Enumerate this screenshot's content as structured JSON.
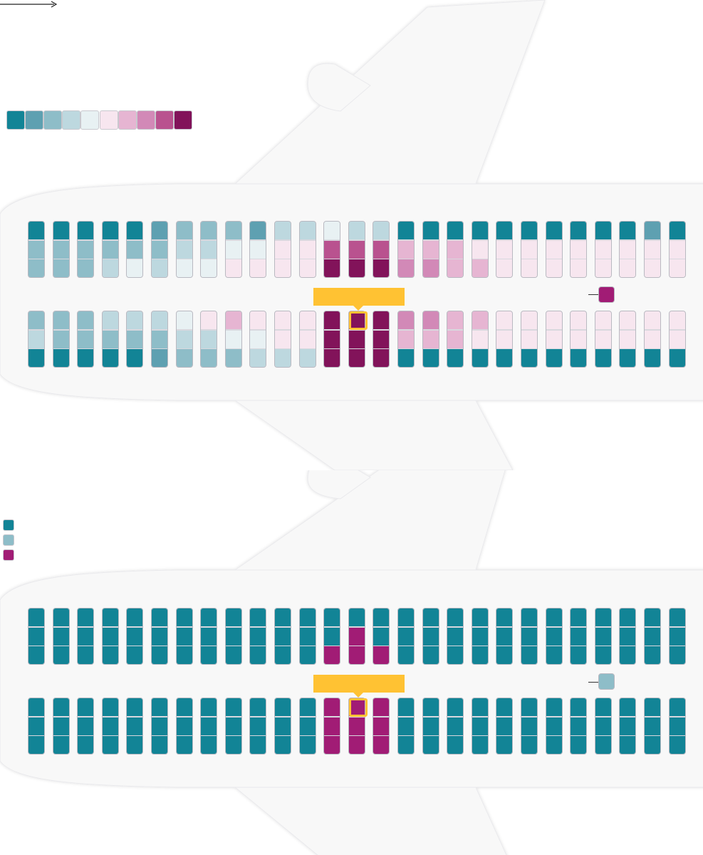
{
  "colors": {
    "fuselage": "#f8f8f8",
    "fuselage_edge": "#e9e9ec",
    "seat_border": "#b9b9c1",
    "highlight": "#ffc233",
    "teal": "#128496",
    "magenta": "#a11c75"
  },
  "risk_scale": [
    "#128496",
    "#5ea0b1",
    "#8ebdc8",
    "#bdd8df",
    "#e8f1f3",
    "#f7e6ef",
    "#e6b5d2",
    "#d289b7",
    "#b9528f",
    "#82135a"
  ],
  "risk_panel": {
    "columns": 27,
    "upper_block": [
      [
        0,
        2,
        2
      ],
      [
        0,
        2,
        2
      ],
      [
        0,
        2,
        2
      ],
      [
        0,
        2,
        3
      ],
      [
        0,
        2,
        4
      ],
      [
        1,
        2,
        3
      ],
      [
        2,
        3,
        4
      ],
      [
        2,
        3,
        4
      ],
      [
        2,
        4,
        5
      ],
      [
        1,
        4,
        5
      ],
      [
        3,
        5,
        5
      ],
      [
        3,
        5,
        5
      ],
      [
        4,
        8,
        9
      ],
      [
        3,
        8,
        9
      ],
      [
        3,
        8,
        9
      ],
      [
        0,
        6,
        7
      ],
      [
        0,
        6,
        7
      ],
      [
        0,
        6,
        6
      ],
      [
        0,
        5,
        6
      ],
      [
        0,
        5,
        5
      ],
      [
        0,
        5,
        5
      ],
      [
        0,
        5,
        5
      ],
      [
        0,
        5,
        5
      ],
      [
        0,
        5,
        5
      ],
      [
        0,
        5,
        5
      ],
      [
        1,
        5,
        5
      ],
      [
        0,
        5,
        5
      ]
    ],
    "lower_block": [
      [
        2,
        3,
        0
      ],
      [
        2,
        2,
        0
      ],
      [
        2,
        2,
        0
      ],
      [
        3,
        2,
        0
      ],
      [
        3,
        2,
        0
      ],
      [
        3,
        2,
        1
      ],
      [
        4,
        3,
        2
      ],
      [
        5,
        3,
        2
      ],
      [
        6,
        4,
        2
      ],
      [
        5,
        4,
        3
      ],
      [
        5,
        5,
        3
      ],
      [
        5,
        5,
        3
      ],
      [
        9,
        9,
        9
      ],
      [
        9,
        9,
        9
      ],
      [
        9,
        9,
        9
      ],
      [
        7,
        6,
        0
      ],
      [
        7,
        6,
        0
      ],
      [
        6,
        6,
        0
      ],
      [
        6,
        5,
        0
      ],
      [
        5,
        5,
        0
      ],
      [
        5,
        5,
        0
      ],
      [
        5,
        5,
        0
      ],
      [
        5,
        5,
        0
      ],
      [
        5,
        5,
        0
      ],
      [
        5,
        5,
        0
      ],
      [
        5,
        5,
        0
      ],
      [
        5,
        5,
        0
      ]
    ],
    "index_case_column": 13,
    "key_color": "#a11c75"
  },
  "infection_panel": {
    "legend": [
      "#128496",
      "#8ebdc8",
      "#a11c75"
    ],
    "upper_block": [
      [
        0,
        0,
        0
      ],
      [
        0,
        0,
        0
      ],
      [
        0,
        0,
        0
      ],
      [
        0,
        0,
        0
      ],
      [
        0,
        0,
        0
      ],
      [
        0,
        0,
        0
      ],
      [
        0,
        0,
        0
      ],
      [
        0,
        0,
        0
      ],
      [
        0,
        0,
        0
      ],
      [
        0,
        0,
        0
      ],
      [
        0,
        0,
        0
      ],
      [
        0,
        0,
        0
      ],
      [
        0,
        0,
        2
      ],
      [
        0,
        2,
        2
      ],
      [
        0,
        0,
        2
      ],
      [
        0,
        0,
        0
      ],
      [
        0,
        0,
        0
      ],
      [
        0,
        0,
        0
      ],
      [
        0,
        0,
        0
      ],
      [
        0,
        0,
        0
      ],
      [
        0,
        0,
        0
      ],
      [
        0,
        0,
        0
      ],
      [
        0,
        0,
        0
      ],
      [
        0,
        0,
        0
      ],
      [
        0,
        0,
        0
      ],
      [
        0,
        0,
        0
      ],
      [
        0,
        0,
        0
      ]
    ],
    "lower_block": [
      [
        0,
        0,
        0
      ],
      [
        0,
        0,
        0
      ],
      [
        0,
        0,
        0
      ],
      [
        0,
        0,
        0
      ],
      [
        0,
        0,
        0
      ],
      [
        0,
        0,
        0
      ],
      [
        0,
        0,
        0
      ],
      [
        0,
        0,
        0
      ],
      [
        0,
        0,
        0
      ],
      [
        0,
        0,
        0
      ],
      [
        0,
        0,
        0
      ],
      [
        0,
        0,
        0
      ],
      [
        2,
        2,
        2
      ],
      [
        2,
        2,
        2
      ],
      [
        2,
        2,
        2
      ],
      [
        0,
        0,
        0
      ],
      [
        0,
        0,
        0
      ],
      [
        0,
        0,
        0
      ],
      [
        0,
        0,
        0
      ],
      [
        0,
        0,
        0
      ],
      [
        0,
        0,
        0
      ],
      [
        0,
        0,
        0
      ],
      [
        0,
        0,
        0
      ],
      [
        0,
        0,
        0
      ],
      [
        0,
        0,
        0
      ],
      [
        0,
        0,
        0
      ],
      [
        0,
        0,
        0
      ]
    ],
    "index_case_column": 13,
    "key_color": "#8ebdc8"
  }
}
